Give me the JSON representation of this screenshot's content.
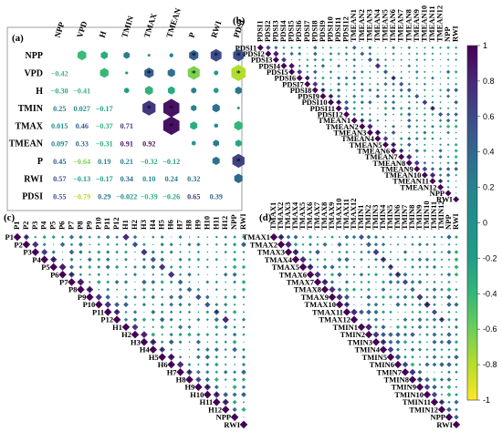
{
  "figure": {
    "panel_labels": [
      "(a)",
      "(b)",
      "(c)",
      "(d)"
    ],
    "colorbar": {
      "ticks": [
        "1",
        "0.8",
        "0.6",
        "0.4",
        "0.2",
        "0",
        "-0.2",
        "-0.4",
        "-0.6",
        "-0.8",
        "-1"
      ],
      "colors": {
        "pos": "#440154",
        "mid": "#21918c",
        "neg": "#fde725"
      }
    }
  },
  "chart_data": [
    {
      "panel": "(a)",
      "type": "heatmap",
      "variables": [
        "NPP",
        "VPD",
        "H",
        "TMIN",
        "TMAX",
        "TMEAN",
        "P",
        "RWI",
        "PDSI"
      ],
      "lower_triangle_values": [
        [],
        [
          -0.42
        ],
        [
          -0.3,
          -0.41
        ],
        [
          0.25,
          0.027,
          -0.17
        ],
        [
          0.015,
          0.46,
          -0.37,
          0.71
        ],
        [
          0.097,
          0.33,
          -0.31,
          0.91,
          0.92
        ],
        [
          0.45,
          -0.64,
          0.19,
          0.21,
          -0.32,
          -0.12
        ],
        [
          0.57,
          -0.13,
          -0.17,
          0.34,
          0.1,
          0.24,
          0.32
        ],
        [
          0.55,
          -0.79,
          0.29,
          -0.022,
          -0.39,
          -0.26,
          0.65,
          0.39
        ]
      ],
      "lower_triangle_labels": [
        [],
        [
          "−0.42"
        ],
        [
          "−0.30",
          "−0.41"
        ],
        [
          "0.25",
          "0.027",
          "−0.17"
        ],
        [
          "0.015",
          "0.46",
          "−0.37",
          "0.71"
        ],
        [
          "0.097",
          "0.33",
          "−0.31",
          "0.91",
          "0.92"
        ],
        [
          "0.45",
          "−0.64",
          "0.19",
          "0.21",
          "−0.32",
          "−0.12"
        ],
        [
          "0.57",
          "−0.13",
          "−0.17",
          "0.34",
          "0.10",
          "0.24",
          "0.32"
        ],
        [
          "0.55",
          "−0.79",
          "0.29",
          "−0.022",
          "−0.39",
          "−0.26",
          "0.65",
          "0.39"
        ]
      ],
      "significance_marks_upper": [
        [
          "VPD",
          "TMAX"
        ],
        [
          "VPD",
          "P"
        ],
        [
          "VPD",
          "PDSI"
        ],
        [
          "NPP",
          "P"
        ],
        [
          "NPP",
          "RWI"
        ],
        [
          "NPP",
          "PDSI"
        ],
        [
          "TMIN",
          "TMAX"
        ],
        [
          "TMIN",
          "TMEAN"
        ],
        [
          "TMAX",
          "TMEAN"
        ],
        [
          "P",
          "PDSI"
        ]
      ]
    },
    {
      "panel": "(b)",
      "type": "heatmap",
      "variables": [
        "PDSI1",
        "PDSI2",
        "PDSI3",
        "PDSI4",
        "PDSI5",
        "PDSI6",
        "PDSI7",
        "PDSI8",
        "PDSI9",
        "PDSI10",
        "PDSI11",
        "PDSI12",
        "TMEAN1",
        "TMEAN2",
        "TMEAN3",
        "TMEAN4",
        "TMEAN5",
        "TMEAN6",
        "TMEAN7",
        "TMEAN8",
        "TMEAN9",
        "TMEAN10",
        "TMEAN11",
        "TMEAN12",
        "NPP",
        "RWI"
      ]
    },
    {
      "panel": "(c)",
      "type": "heatmap",
      "variables": [
        "P1",
        "P2",
        "P3",
        "P4",
        "P5",
        "P6",
        "P7",
        "P8",
        "P9",
        "P10",
        "P11",
        "P12",
        "H1",
        "H2",
        "H3",
        "H4",
        "H5",
        "H6",
        "H7",
        "H8",
        "H9",
        "H10",
        "H11",
        "H12",
        "NPP",
        "RWI"
      ]
    },
    {
      "panel": "(d)",
      "type": "heatmap",
      "variables": [
        "TMAX1",
        "TMAX2",
        "TMAX3",
        "TMAX4",
        "TMAX5",
        "TMAX6",
        "TMAX7",
        "TMAX8",
        "TMAX9",
        "TMAX10",
        "TMAX11",
        "TMAX12",
        "TMIN1",
        "TMIN2",
        "TMIN3",
        "TMIN4",
        "TMIN5",
        "TMIN6",
        "TMIN7",
        "TMIN8",
        "TMIN9",
        "TMIN10",
        "TMIN11",
        "TMIN12",
        "NPP",
        "RWI"
      ]
    }
  ]
}
